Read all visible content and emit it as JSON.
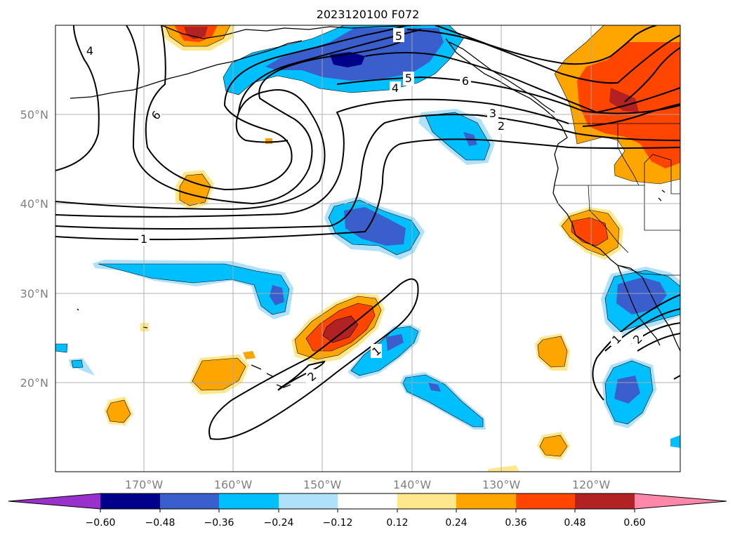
{
  "map": {
    "title": "2023120100 F072",
    "lat_labels": [
      "50°N",
      "40°N",
      "30°N",
      "20°N"
    ],
    "lon_labels": [
      "170°W",
      "160°W",
      "150°W",
      "140°W",
      "130°W",
      "120°W"
    ],
    "contour_labels": [
      "4",
      "6",
      "5",
      "5",
      "4",
      "6",
      "3",
      "2",
      "1",
      "1",
      "2",
      "1",
      "2"
    ]
  },
  "colorbar": {
    "tick_labels": [
      "−0.60",
      "−0.48",
      "−0.36",
      "−0.24",
      "−0.12",
      "0.12",
      "0.24",
      "0.36",
      "0.48",
      "0.60"
    ],
    "colors": [
      "#9932cc",
      "#00008b",
      "#3a5fcd",
      "#00bfff",
      "#afe1fa",
      "#ffffff",
      "#ffe88c",
      "#ffa500",
      "#ff4500",
      "#b22222",
      "#ff88aa"
    ]
  }
}
